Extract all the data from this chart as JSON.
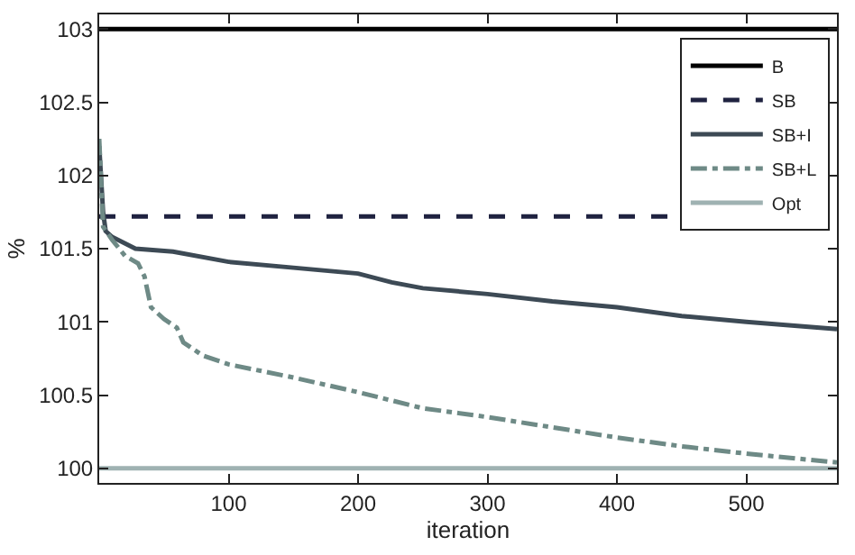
{
  "chart_data": {
    "type": "line",
    "xlabel": "iteration",
    "ylabel": "%",
    "xlim": [
      0,
      570
    ],
    "ylim": [
      99.9,
      103.1
    ],
    "xticks": [
      100,
      200,
      300,
      400,
      500
    ],
    "yticks": [
      100,
      100.5,
      101,
      101.5,
      102,
      102.5,
      103
    ],
    "legend": "top right",
    "marker": "none",
    "series": [
      {
        "name": "B",
        "color": "#000000",
        "line_style": "solid",
        "x": [
          0,
          570
        ],
        "values": [
          103,
          103
        ]
      },
      {
        "name": "SB",
        "color": "#1f2240",
        "line_style": "dashed",
        "x": [
          0,
          570
        ],
        "values": [
          101.72,
          101.72
        ]
      },
      {
        "name": "SB+I",
        "color": "#3d4a55",
        "line_style": "solid",
        "x": [
          0,
          3,
          5,
          10,
          28,
          57,
          100,
          150,
          200,
          226,
          250,
          300,
          350,
          400,
          450,
          500,
          570
        ],
        "values": [
          102.2,
          101.75,
          101.62,
          101.58,
          101.5,
          101.48,
          101.41,
          101.37,
          101.33,
          101.27,
          101.23,
          101.19,
          101.14,
          101.1,
          101.04,
          101.0,
          100.95
        ]
      },
      {
        "name": "SB+L",
        "color": "#6e8a86",
        "line_style": "dashdot",
        "x": [
          0,
          3,
          10,
          20,
          30,
          35,
          40,
          50,
          60,
          65,
          80,
          100,
          150,
          200,
          250,
          300,
          350,
          400,
          450,
          500,
          570
        ],
        "values": [
          102.25,
          101.65,
          101.56,
          101.45,
          101.4,
          101.31,
          101.1,
          101.02,
          100.96,
          100.86,
          100.77,
          100.71,
          100.62,
          100.52,
          100.41,
          100.35,
          100.28,
          100.21,
          100.15,
          100.1,
          100.04
        ]
      },
      {
        "name": "Opt",
        "color": "#9fb2b2",
        "line_style": "solid",
        "x": [
          0,
          570
        ],
        "values": [
          100,
          100
        ]
      }
    ]
  }
}
